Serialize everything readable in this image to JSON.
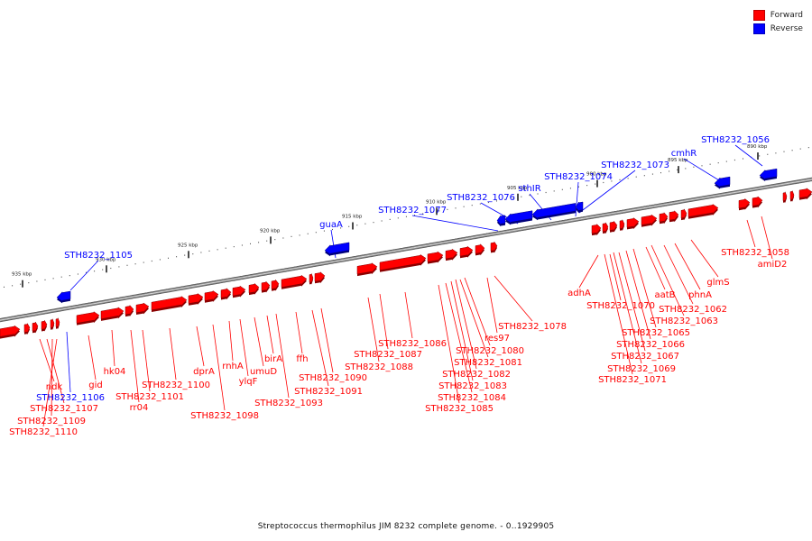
{
  "legend": {
    "forward_label": "Forward",
    "reverse_label": "Reverse",
    "forward_color": "#ff0000",
    "reverse_color": "#0000ff"
  },
  "caption": "Streptococcus thermophilus JIM 8232 complete genome. - 0..1929905",
  "backbone_color": "#8c8c8c",
  "ruler_labels": [
    "935 kbp",
    "930 kbp",
    "925 kbp",
    "920 kbp",
    "915 kbp",
    "910 kbp",
    "905 kbp",
    "900 kbp",
    "895 kbp",
    "890 kbp"
  ],
  "reverse_labels": [
    "STH8232_1105",
    "guaA",
    "STH8232_1077",
    "STH8232_1076",
    "sthIR",
    "STH8232_1074",
    "STH8232_1073",
    "cmhR",
    "STH8232_1056",
    "STH8232_1106"
  ],
  "forward_labels": [
    "ndk",
    "STH8232_1107",
    "STH8232_1109",
    "STH8232_1110",
    "gid",
    "hk04",
    "rr04",
    "STH8232_1101",
    "STH8232_1100",
    "dprA",
    "STH8232_1098",
    "rnhA",
    "ylqF",
    "umuD",
    "birA",
    "STH8232_1093",
    "ffh",
    "STH8232_1091",
    "STH8232_1090",
    "STH8232_1088",
    "STH8232_1087",
    "STH8232_1086",
    "STH8232_1085",
    "STH8232_1084",
    "STH8232_1083",
    "STH8232_1082",
    "STH8232_1081",
    "STH8232_1080",
    "res97",
    "STH8232_1078",
    "adhA",
    "STH8232_1071",
    "STH8232_1070",
    "STH8232_1069",
    "STH8232_1067",
    "STH8232_1066",
    "STH8232_1065",
    "aatB",
    "STH8232_1063",
    "phnA",
    "STH8232_1062",
    "glmS",
    "STH8232_1058",
    "amiD2"
  ]
}
